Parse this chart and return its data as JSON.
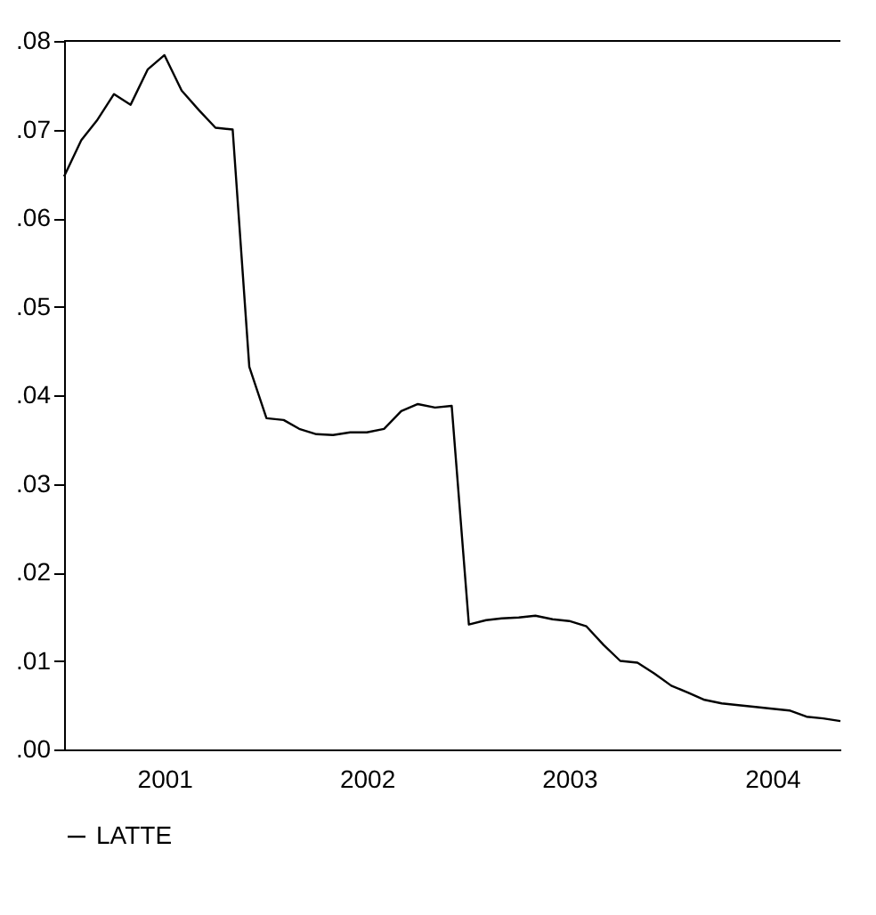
{
  "chart_data": {
    "type": "line",
    "x": [
      "2001-01",
      "2001-02",
      "2001-03",
      "2001-04",
      "2001-05",
      "2001-06",
      "2001-07",
      "2001-08",
      "2001-09",
      "2001-10",
      "2001-11",
      "2001-12",
      "2002-01",
      "2002-02",
      "2002-03",
      "2002-04",
      "2002-05",
      "2002-06",
      "2002-07",
      "2002-08",
      "2002-09",
      "2002-10",
      "2002-11",
      "2002-12",
      "2003-01",
      "2003-02",
      "2003-03",
      "2003-04",
      "2003-05",
      "2003-06",
      "2003-07",
      "2003-08",
      "2003-09",
      "2003-10",
      "2003-11",
      "2003-12",
      "2004-01",
      "2004-02",
      "2004-03",
      "2004-04",
      "2004-05",
      "2004-06",
      "2004-07",
      "2004-08",
      "2004-09",
      "2004-10",
      "2004-11"
    ],
    "series": [
      {
        "name": "LATTE",
        "color": "#000000",
        "values": [
          0.0647,
          0.0688,
          0.071,
          0.074,
          0.0728,
          0.0768,
          0.0784,
          0.0744,
          0.0722,
          0.0702,
          0.07,
          0.0432,
          0.0374,
          0.0372,
          0.0362,
          0.0356,
          0.0355,
          0.0358,
          0.0358,
          0.0362,
          0.0382,
          0.039,
          0.0386,
          0.0388,
          0.0141,
          0.0146,
          0.0148,
          0.0149,
          0.0151,
          0.0147,
          0.0145,
          0.0139,
          0.0118,
          0.01,
          0.0098,
          0.0086,
          0.0072,
          0.0064,
          0.0056,
          0.0052,
          0.005,
          0.0048,
          0.0046,
          0.0044,
          0.0037,
          0.0035,
          0.0032
        ]
      }
    ],
    "xlim": [
      "2001-01",
      "2004-11"
    ],
    "xticks": [
      {
        "value": "2001-07",
        "label": "2001"
      },
      {
        "value": "2002-07",
        "label": "2002"
      },
      {
        "value": "2003-07",
        "label": "2003"
      },
      {
        "value": "2004-07",
        "label": "2004"
      }
    ],
    "ylim": [
      0,
      0.08
    ],
    "yticks": [
      {
        "value": 0,
        "label": ".00"
      },
      {
        "value": 0.01,
        "label": ".01"
      },
      {
        "value": 0.02,
        "label": ".02"
      },
      {
        "value": 0.03,
        "label": ".03"
      },
      {
        "value": 0.04,
        "label": ".04"
      },
      {
        "value": 0.05,
        "label": ".05"
      },
      {
        "value": 0.06,
        "label": ".06"
      },
      {
        "value": 0.07,
        "label": ".07"
      },
      {
        "value": 0.08,
        "label": ".08"
      }
    ],
    "legend": "bottom"
  }
}
